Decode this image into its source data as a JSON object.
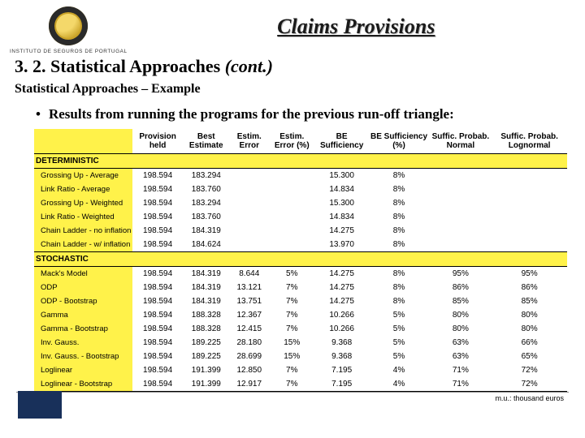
{
  "header": {
    "logo_text": "INSTITUTO DE SEGUROS DE PORTUGAL",
    "title": "Claims Provisions"
  },
  "section_number": "3. 2. Statistical Approaches ",
  "section_cont": "(cont.)",
  "subtitle": "Statistical Approaches – Example",
  "bullet": "Results from running the programs for the previous run-off triangle:",
  "footnote": "m.u.: thousand euros",
  "columns": [
    "Provision held",
    "Best Estimate",
    "Estim. Error",
    "Estim. Error (%)",
    "BE Sufficiency",
    "BE Sufficiency (%)",
    "Suffic. Probab. Normal",
    "Suffic. Probab. Lognormal"
  ],
  "sections": [
    {
      "label": "DETERMINISTIC",
      "rows": [
        {
          "label": "Grossing Up - Average",
          "cells": [
            "198.594",
            "183.294",
            "",
            "",
            "15.300",
            "8%",
            "",
            ""
          ]
        },
        {
          "label": "Link Ratio - Average",
          "cells": [
            "198.594",
            "183.760",
            "",
            "",
            "14.834",
            "8%",
            "",
            ""
          ]
        },
        {
          "label": "Grossing Up - Weighted",
          "cells": [
            "198.594",
            "183.294",
            "",
            "",
            "15.300",
            "8%",
            "",
            ""
          ]
        },
        {
          "label": "Link Ratio - Weighted",
          "cells": [
            "198.594",
            "183.760",
            "",
            "",
            "14.834",
            "8%",
            "",
            ""
          ]
        },
        {
          "label": "Chain Ladder - no inflation",
          "cells": [
            "198.594",
            "184.319",
            "",
            "",
            "14.275",
            "8%",
            "",
            ""
          ]
        },
        {
          "label": "Chain Ladder - w/ inflation",
          "cells": [
            "198.594",
            "184.624",
            "",
            "",
            "13.970",
            "8%",
            "",
            ""
          ]
        }
      ]
    },
    {
      "label": "STOCHASTIC",
      "rows": [
        {
          "label": "Mack's Model",
          "cells": [
            "198.594",
            "184.319",
            "8.644",
            "5%",
            "14.275",
            "8%",
            "95%",
            "95%"
          ]
        },
        {
          "label": "ODP",
          "cells": [
            "198.594",
            "184.319",
            "13.121",
            "7%",
            "14.275",
            "8%",
            "86%",
            "86%"
          ]
        },
        {
          "label": "ODP - Bootstrap",
          "cells": [
            "198.594",
            "184.319",
            "13.751",
            "7%",
            "14.275",
            "8%",
            "85%",
            "85%"
          ]
        },
        {
          "label": "Gamma",
          "cells": [
            "198.594",
            "188.328",
            "12.367",
            "7%",
            "10.266",
            "5%",
            "80%",
            "80%"
          ]
        },
        {
          "label": "Gamma - Bootstrap",
          "cells": [
            "198.594",
            "188.328",
            "12.415",
            "7%",
            "10.266",
            "5%",
            "80%",
            "80%"
          ]
        },
        {
          "label": "Inv. Gauss.",
          "cells": [
            "198.594",
            "189.225",
            "28.180",
            "15%",
            "9.368",
            "5%",
            "63%",
            "66%"
          ]
        },
        {
          "label": "Inv. Gauss. - Bootstrap",
          "cells": [
            "198.594",
            "189.225",
            "28.699",
            "15%",
            "9.368",
            "5%",
            "63%",
            "65%"
          ]
        },
        {
          "label": "Loglinear",
          "cells": [
            "198.594",
            "191.399",
            "12.850",
            "7%",
            "7.195",
            "4%",
            "71%",
            "72%"
          ]
        },
        {
          "label": "Loglinear - Bootstrap",
          "cells": [
            "198.594",
            "191.399",
            "12.917",
            "7%",
            "7.195",
            "4%",
            "71%",
            "72%"
          ]
        }
      ]
    }
  ]
}
